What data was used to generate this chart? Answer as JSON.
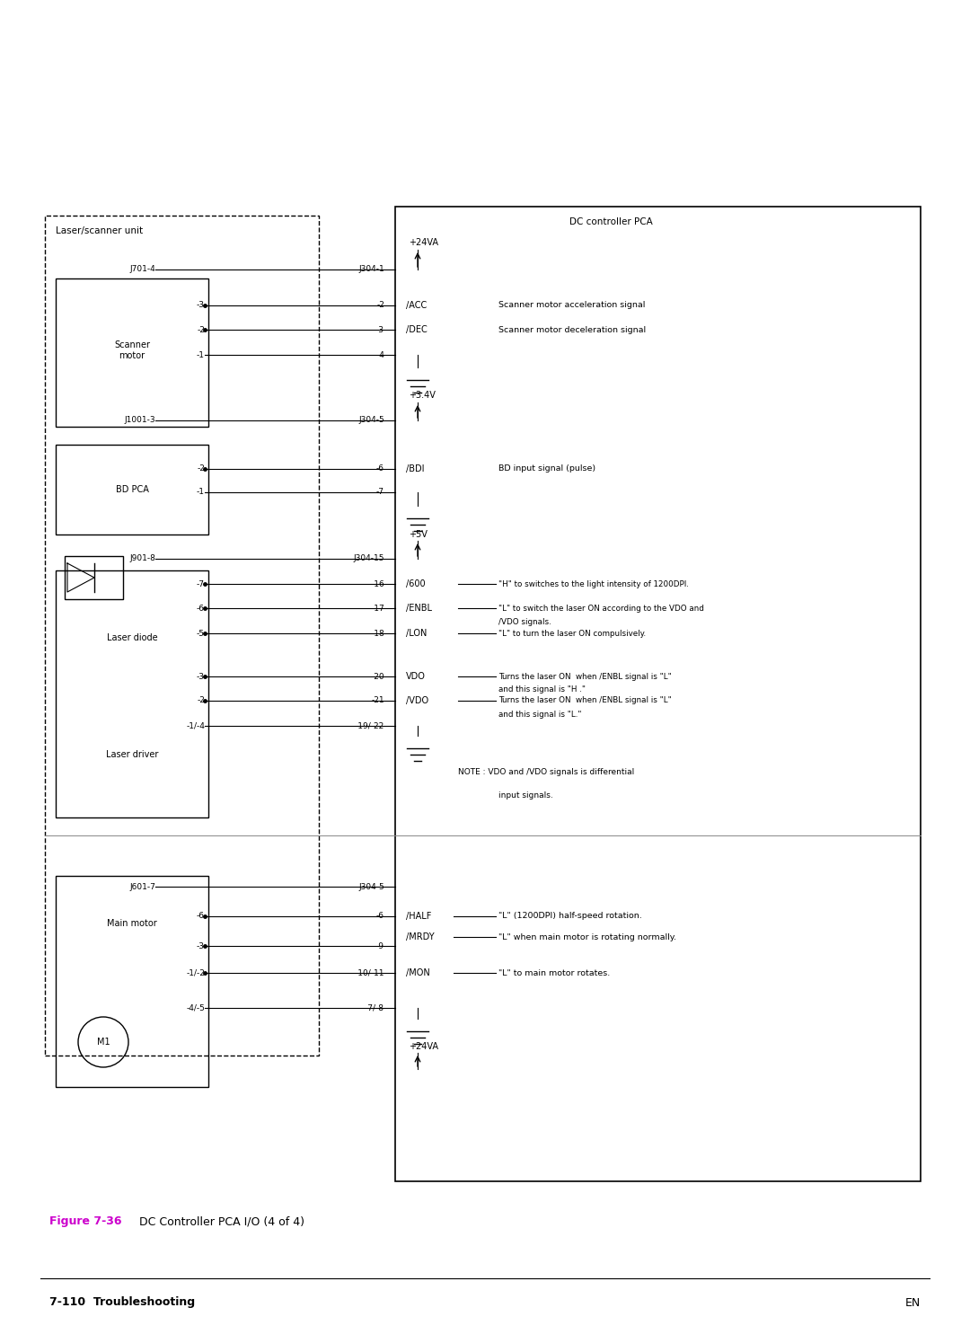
{
  "bg_color": "#ffffff",
  "fig_width": 10.8,
  "fig_height": 14.95,
  "title_caption": "DC Controller PCA I/O (4 of 4)",
  "figure_label": "Figure 7-36",
  "footer_left": "7-110  Troubleshooting",
  "footer_right": "EN",
  "dc_controller_label": "DC controller PCA",
  "laser_scanner_label": "Laser/scanner unit",
  "scanner_motor_label": "Scanner\nmotor",
  "bd_pca_label": "BD PCA",
  "laser_diode_label": "Laser diode",
  "laser_driver_label": "Laser driver",
  "main_motor_label": "Main motor",
  "m1_label": "M1",
  "signals_right": [
    [
      "/ACC",
      "Scanner motor acceleration signal"
    ],
    [
      "/DEC",
      "Scanner motor deceleration signal"
    ],
    [
      "/BDI",
      "BD input signal (pulse)"
    ],
    [
      "/600",
      "\"H\" to switches to the light intensity of 1200DPI."
    ],
    [
      "/ENBL",
      "\"L\" to switch the laser ON according to the VDO and\n/VDO signals."
    ],
    [
      "/LON",
      "\"L\" to turn the laser ON compulsively."
    ],
    [
      "VDO",
      "Turns the laser ON  when /ENBL signal is \"L\"\nand this signal is \"H .\""
    ],
    [
      "/VDO",
      "Turns the laser ON  when /ENBL signal is \"L\"\nand this signal is \"L.\""
    ],
    [
      "/HALF",
      "\"L\" (1200DPI) half-speed rotation."
    ],
    [
      "/MRDY",
      "\"L\" when main motor is rotating normally."
    ],
    [
      "/MON",
      "\"L\" to main motor rotates."
    ]
  ],
  "note_text": "NOTE : VDO and /VDO signals is differential\n       input signals.",
  "power_labels": [
    "+24VA",
    "+3.4V",
    "+5V",
    "+24VA"
  ],
  "connector_labels_left": [
    "J701-4",
    "J1001-3",
    "J901-8",
    "J601-7"
  ],
  "connector_labels_right": [
    "J304-1",
    "J304-5",
    "J304-15",
    "J304-5"
  ],
  "pin_labels_left_scanner": [
    "-3",
    "-2",
    "-1"
  ],
  "pin_labels_right_scanner": [
    "-2",
    "-3",
    "-4"
  ],
  "pin_labels_left_bd": [
    "-2",
    "-1"
  ],
  "pin_labels_right_bd": [
    "-6",
    "-7"
  ],
  "pin_labels_left_laser": [
    "-7",
    "-6",
    "-5",
    "-3",
    "-2",
    "-1/-4"
  ],
  "pin_labels_right_laser": [
    "-16",
    "-17",
    "-18",
    "-20",
    "-21",
    "-19/-22"
  ],
  "pin_labels_left_main": [
    "-6",
    "-3",
    "-1/-2",
    "-4/-5"
  ],
  "pin_labels_right_main": [
    "-6",
    "-9",
    "-10/-11",
    "-7/-8"
  ]
}
